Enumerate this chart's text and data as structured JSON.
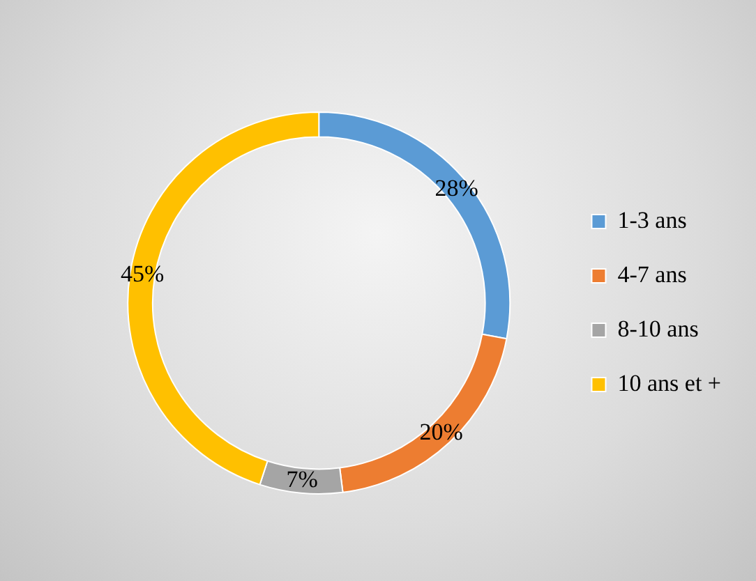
{
  "chart_data": {
    "type": "donut",
    "categories": [
      "1-3 ans",
      "4-7 ans",
      "8-10 ans",
      "10 ans et +"
    ],
    "values": [
      28,
      20,
      7,
      45
    ],
    "colors": [
      "#5b9bd5",
      "#ed7d31",
      "#a5a5a5",
      "#ffc000"
    ],
    "value_labels": [
      "28%",
      "20%",
      "7%",
      "45%"
    ],
    "legend": "right"
  }
}
